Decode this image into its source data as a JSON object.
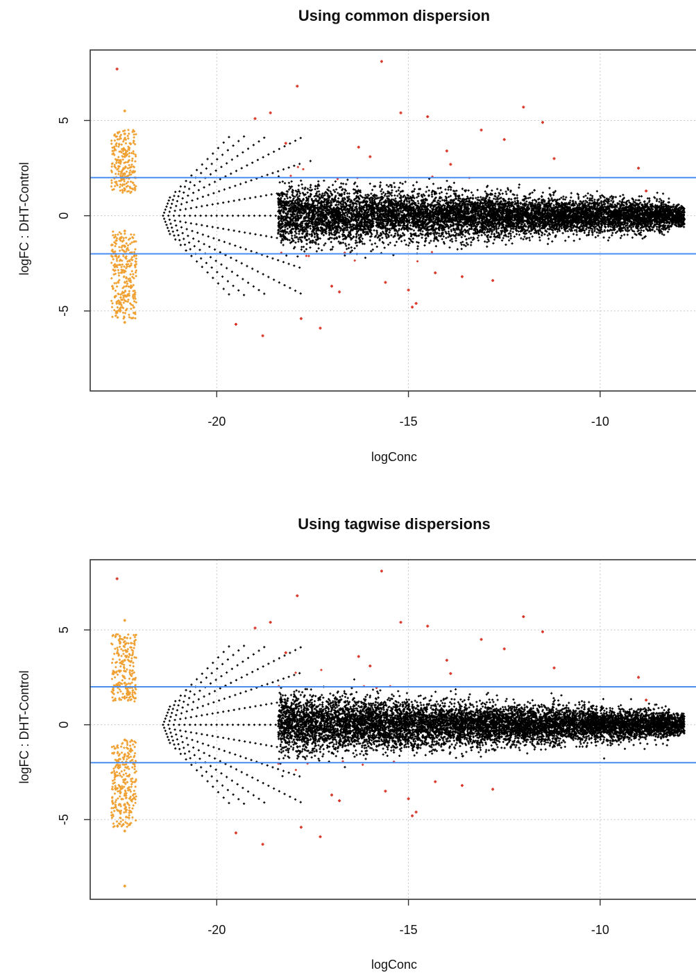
{
  "chart_data": [
    {
      "type": "scatter",
      "title": "Using common dispersion",
      "xlabel": "logConc",
      "ylabel": "logFC : DHT-Control",
      "xlim": [
        -23.3,
        -7.5
      ],
      "ylim": [
        -9.2,
        8.7
      ],
      "x_ticks": [
        -20,
        -15,
        -10
      ],
      "x_tick_labels": [
        "-20",
        "-15",
        "-10"
      ],
      "y_ticks": [
        -5,
        0,
        5
      ],
      "y_tick_labels": [
        "-5",
        "0",
        "5"
      ],
      "grid": true,
      "hlines": [
        2,
        -2
      ],
      "colors": {
        "not_de": "#000000",
        "de": "#d93a2b",
        "zero_count": "#f0a030",
        "hline": "#4a8df0"
      },
      "series": [
        {
          "name": "",
          "color": "#d93a2b",
          "x": [
            -22.6,
            -15.7,
            -17.9,
            -12.0,
            -15.2,
            -14.5,
            -11.5,
            -18.6,
            -19.0,
            -18.8,
            -17.3,
            -19.5,
            -17.8,
            -18.2,
            -14.8,
            -14.9,
            -9.0,
            -8.8,
            -16.8,
            -13.1,
            -12.5,
            -15.0,
            -14.0,
            -16.3,
            -15.6,
            -13.6,
            -11.2,
            -16.0,
            -14.3,
            -12.8,
            -17.0,
            -13.9
          ],
          "y": [
            7.7,
            8.1,
            6.8,
            5.7,
            5.4,
            5.2,
            4.9,
            5.4,
            5.1,
            -6.3,
            -5.9,
            -5.7,
            -5.4,
            3.8,
            -4.6,
            -4.8,
            2.5,
            1.3,
            -4.0,
            4.5,
            4.0,
            -3.9,
            3.4,
            3.6,
            -3.5,
            -3.2,
            3.0,
            3.1,
            -3.0,
            -3.4,
            -3.7,
            2.7
          ]
        },
        {
          "name": "",
          "color": "#f0a030",
          "x": [
            -22.4,
            -22.4,
            -22.4,
            -22.4,
            -22.4,
            -22.4,
            -22.4,
            -22.4,
            -22.4,
            -22.4
          ],
          "y": [
            5.5,
            4.3,
            3.1,
            2.2,
            1.4,
            -0.8,
            -1.6,
            -2.9,
            -4.2,
            -5.6
          ]
        },
        {
          "name": "",
          "color": "#000000",
          "x": [
            -14.5,
            -13.6,
            -12.4,
            -11.0,
            -9.6,
            -8.8,
            -7.9
          ],
          "y": [
            0.0,
            0.2,
            -0.1,
            0.1,
            0.0,
            0.2,
            0.0
          ]
        }
      ]
    },
    {
      "type": "scatter",
      "title": "Using tagwise dispersions",
      "xlabel": "logConc",
      "ylabel": "logFC : DHT-Control",
      "xlim": [
        -23.3,
        -7.5
      ],
      "ylim": [
        -9.2,
        8.7
      ],
      "x_ticks": [
        -20,
        -15,
        -10
      ],
      "x_tick_labels": [
        "-20",
        "-15",
        "-10"
      ],
      "y_ticks": [
        -5,
        0,
        5
      ],
      "y_tick_labels": [
        "-5",
        "0",
        "5"
      ],
      "grid": true,
      "hlines": [
        2,
        -2
      ],
      "colors": {
        "not_de": "#000000",
        "de": "#d93a2b",
        "zero_count": "#f0a030",
        "hline": "#4a8df0"
      },
      "series": [
        {
          "name": "",
          "color": "#d93a2b",
          "x": [
            -22.6,
            -15.7,
            -17.9,
            -12.0,
            -15.2,
            -14.5,
            -11.5,
            -18.6,
            -19.0,
            -18.8,
            -17.3,
            -19.5,
            -17.8,
            -18.2,
            -14.8,
            -14.9,
            -9.0,
            -8.8,
            -16.8,
            -13.1,
            -12.5,
            -15.0,
            -14.0,
            -16.3,
            -15.6,
            -13.6,
            -11.2,
            -16.0,
            -14.3,
            -12.8,
            -17.0,
            -13.9
          ],
          "y": [
            7.7,
            8.1,
            6.8,
            5.7,
            5.4,
            5.2,
            4.9,
            5.4,
            5.1,
            -6.3,
            -5.9,
            -5.7,
            -5.4,
            3.8,
            -4.6,
            -4.8,
            2.5,
            1.3,
            -4.0,
            4.5,
            4.0,
            -3.9,
            3.4,
            3.6,
            -3.5,
            -3.2,
            3.0,
            3.1,
            -3.0,
            -3.4,
            -3.7,
            2.7
          ]
        },
        {
          "name": "",
          "color": "#f0a030",
          "x": [
            -22.4,
            -22.4,
            -22.4,
            -22.4,
            -22.4,
            -22.4,
            -22.4,
            -22.4,
            -22.4,
            -22.4,
            -22.4
          ],
          "y": [
            5.5,
            4.6,
            3.4,
            2.2,
            1.4,
            -0.8,
            -1.6,
            -2.9,
            -4.2,
            -5.6,
            -8.5
          ]
        },
        {
          "name": "",
          "color": "#000000",
          "x": [
            -14.5,
            -13.6,
            -12.4,
            -11.0,
            -9.6,
            -8.8,
            -7.9
          ],
          "y": [
            0.0,
            0.2,
            -0.1,
            0.1,
            0.0,
            0.2,
            0.0
          ]
        }
      ]
    }
  ]
}
